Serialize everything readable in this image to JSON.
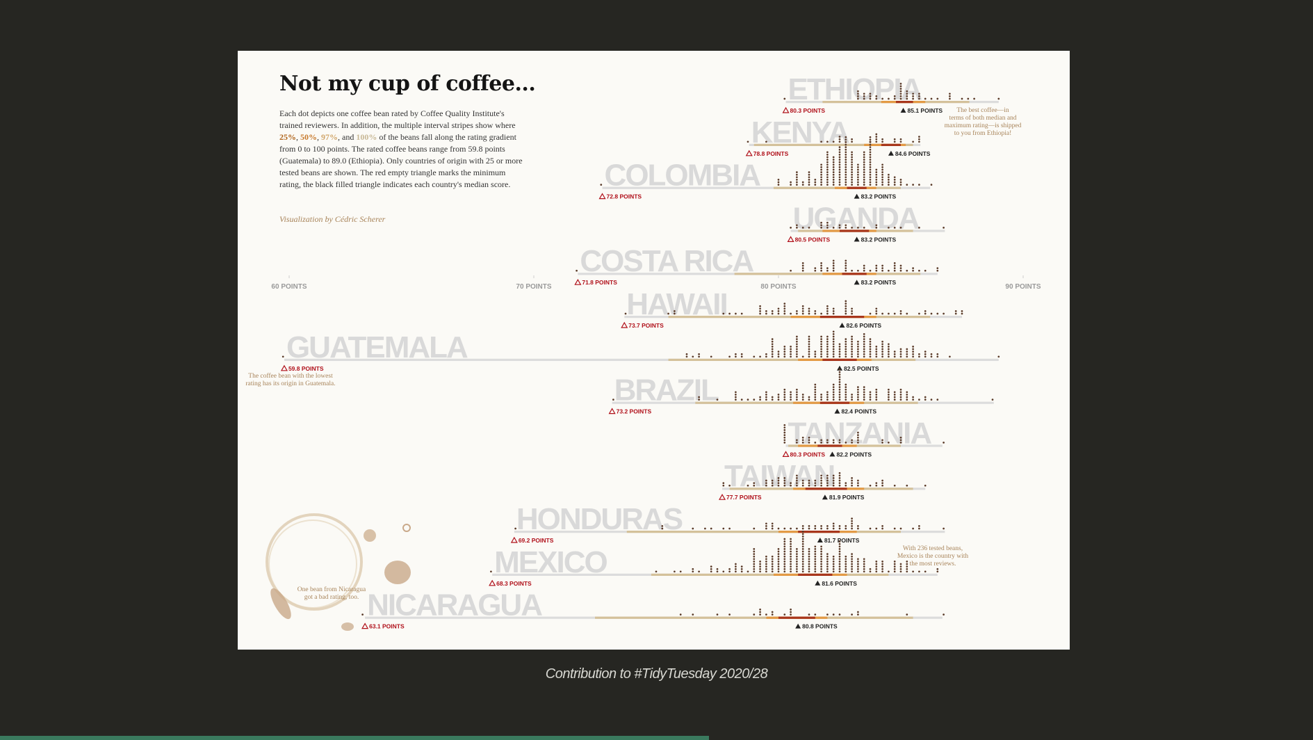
{
  "title": "Not my cup of coffee...",
  "description": {
    "part1": "Each dot depicts one coffee bean rated by Coffee Quality Institute's trained reviewers. In addition, the multiple interval stripes show where ",
    "p25": "25%",
    "sep1": ", ",
    "p50": "50%",
    "sep2": ", ",
    "p97": "97%",
    "sep3": ", and ",
    "p100": "100%",
    "part2": " of the beans fall along the rating gradient from 0 to 100 points. The rated coffee beans range from 59.8 points (Guatemala) to 89.0 (Ethiopia). Only countries of origin with 25 or more tested beans are shown. The red empty triangle marks the minimum rating, the black filled triangle indicates each country's median score."
  },
  "credit": "Visualization by Cédric Scherer",
  "caption": "Contribution to #TidyTuesday 2020/28",
  "progress_fraction": 0.54,
  "colors": {
    "background": "#262622",
    "panel": "#fbfaf6",
    "country_label": "#d9d9d9",
    "stripe_100": "#dcdcdc",
    "stripe_97": "#d4c19a",
    "stripe_50": "#e39a45",
    "stripe_25": "#a8361c",
    "dot": "#5a3a28",
    "min_marker": "#b0101a",
    "median_marker": "#222222",
    "annotation": "#a8845a"
  },
  "annotations": {
    "ethiopia": [
      "The best coffee—in",
      "terms of both median and",
      "maximum rating—is shipped",
      "to you from Ethiopia!"
    ],
    "guatemala": [
      "The coffee bean with the lowest",
      "rating has its origin in Guatemala."
    ],
    "mexico": [
      "With 236 tested beans,",
      "Mexico is the country with",
      "the most reviews."
    ],
    "nicaragua": [
      "One bean from Nicaragua",
      "got a bad rating, too."
    ]
  },
  "chart_data": {
    "type": "dot-strip",
    "x_unit": "POINTS",
    "xlim": [
      60,
      90
    ],
    "ticks": [
      {
        "value": 60,
        "label": "60 POINTS"
      },
      {
        "value": 70,
        "label": "70 POINTS"
      },
      {
        "value": 80,
        "label": "80 POINTS"
      },
      {
        "value": 90,
        "label": "90 POINTS"
      }
    ],
    "series": [
      {
        "name": "ETHIOPIA",
        "min": 80.3,
        "min_label": "80.3 POINTS",
        "median": 85.1,
        "median_label": "85.1 POINTS",
        "max": 89.0,
        "q25": [
          84.8,
          85.5
        ],
        "q50": [
          84.2,
          86.0
        ],
        "q97": [
          81.8,
          87.8
        ],
        "n": 44
      },
      {
        "name": "KENYA",
        "min": 78.8,
        "min_label": "78.8 POINTS",
        "median": 84.6,
        "median_label": "84.6 POINTS",
        "max": 85.8,
        "q25": [
          84.2,
          85.0
        ],
        "q50": [
          83.5,
          85.2
        ],
        "q97": [
          79.0,
          85.5
        ],
        "n": 25
      },
      {
        "name": "COLOMBIA",
        "min": 72.8,
        "min_label": "72.8 POINTS",
        "median": 83.2,
        "median_label": "83.2 POINTS",
        "max": 86.2,
        "q25": [
          82.8,
          83.6
        ],
        "q50": [
          82.3,
          84.0
        ],
        "q97": [
          79.8,
          85.0
        ],
        "n": 183
      },
      {
        "name": "UGANDA",
        "min": 80.5,
        "min_label": "80.5 POINTS",
        "median": 83.2,
        "median_label": "83.2 POINTS",
        "max": 86.8,
        "q25": [
          82.5,
          83.7
        ],
        "q50": [
          81.8,
          84.0
        ],
        "q97": [
          80.8,
          85.5
        ],
        "n": 26
      },
      {
        "name": "COSTA RICA",
        "min": 71.8,
        "min_label": "71.8 POINTS",
        "median": 83.2,
        "median_label": "83.2 POINTS",
        "max": 86.5,
        "q25": [
          82.6,
          83.6
        ],
        "q50": [
          81.8,
          84.0
        ],
        "q97": [
          78.2,
          85.8
        ],
        "n": 51
      },
      {
        "name": "HAWAII",
        "min": 73.7,
        "min_label": "73.7 POINTS",
        "median": 82.6,
        "median_label": "82.6 POINTS",
        "max": 87.5,
        "q25": [
          81.7,
          83.5
        ],
        "q50": [
          80.5,
          84.0
        ],
        "q97": [
          75.5,
          86.2
        ],
        "n": 73
      },
      {
        "name": "GUATEMALA",
        "min": 59.8,
        "min_label": "59.8 POINTS",
        "median": 82.5,
        "median_label": "82.5 POINTS",
        "max": 89.0,
        "q25": [
          81.8,
          83.2
        ],
        "q50": [
          80.8,
          83.8
        ],
        "q97": [
          75.5,
          85.6
        ],
        "n": 181
      },
      {
        "name": "BRAZIL",
        "min": 73.2,
        "min_label": "73.2 POINTS",
        "median": 82.4,
        "median_label": "82.4 POINTS",
        "max": 88.8,
        "q25": [
          81.7,
          82.9
        ],
        "q50": [
          80.6,
          83.5
        ],
        "q97": [
          76.6,
          85.7
        ],
        "n": 132
      },
      {
        "name": "TANZANIA",
        "min": 80.3,
        "min_label": "80.3 POINTS",
        "median": 82.2,
        "median_label": "82.2 POINTS",
        "max": 86.7,
        "q25": [
          81.6,
          82.6
        ],
        "q50": [
          80.8,
          83.2
        ],
        "q97": [
          80.4,
          85.0
        ],
        "n": 40
      },
      {
        "name": "TAIWAN",
        "min": 77.7,
        "min_label": "77.7 POINTS",
        "median": 81.9,
        "median_label": "81.9 POINTS",
        "max": 86.0,
        "q25": [
          81.1,
          82.8
        ],
        "q50": [
          80.6,
          83.5
        ],
        "q97": [
          78.0,
          85.5
        ],
        "n": 75
      },
      {
        "name": "HONDURAS",
        "min": 69.2,
        "min_label": "69.2 POINTS",
        "median": 81.7,
        "median_label": "81.7 POINTS",
        "max": 86.8,
        "q25": [
          80.8,
          82.5
        ],
        "q50": [
          80.0,
          83.2
        ],
        "q97": [
          73.8,
          85.0
        ],
        "n": 53
      },
      {
        "name": "MEXICO",
        "min": 68.3,
        "min_label": "68.3 POINTS",
        "median": 81.6,
        "median_label": "81.6 POINTS",
        "max": 86.5,
        "q25": [
          80.8,
          82.2
        ],
        "q50": [
          79.8,
          82.8
        ],
        "q97": [
          74.8,
          84.5
        ],
        "n": 236
      },
      {
        "name": "NICARAGUA",
        "min": 63.1,
        "min_label": "63.1 POINTS",
        "median": 80.8,
        "median_label": "80.8 POINTS",
        "max": 86.7,
        "q25": [
          80.0,
          81.5
        ],
        "q50": [
          79.5,
          82.0
        ],
        "q97": [
          72.5,
          85.5
        ],
        "n": 26
      }
    ]
  }
}
